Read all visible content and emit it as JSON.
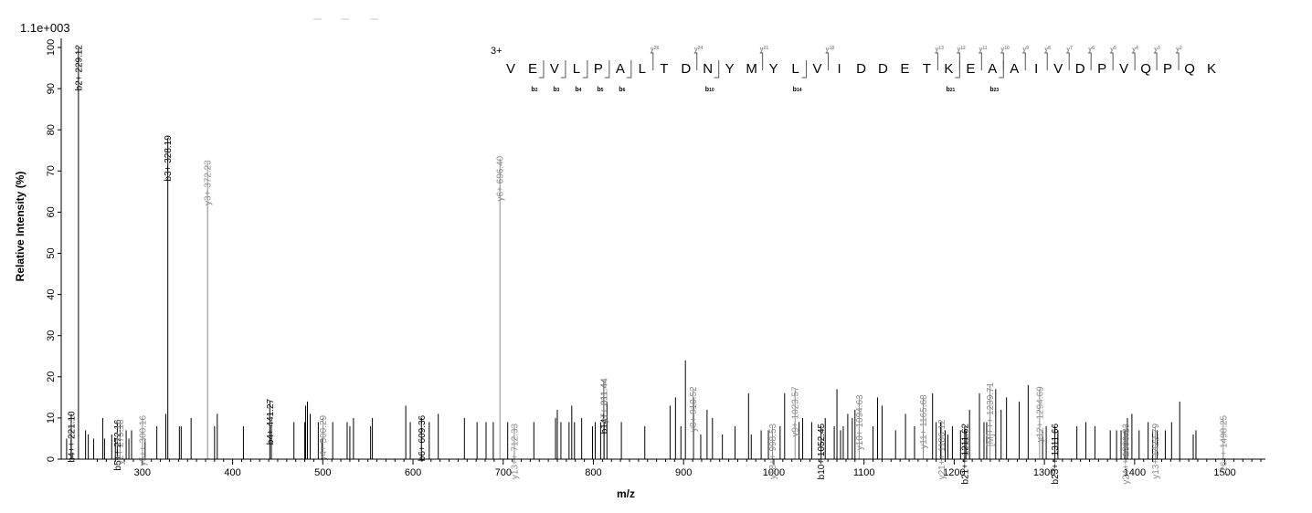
{
  "chart_data": {
    "type": "bar",
    "scale_label": "1.1e+003",
    "xlabel": "m/z",
    "ylabel": "Relative   Intensity (%)",
    "xlim": [
      210,
      1545
    ],
    "ylim": [
      0,
      100
    ],
    "x_ticks": [
      300,
      400,
      500,
      600,
      700,
      800,
      900,
      1000,
      1100,
      1200,
      1300,
      1400,
      1500
    ],
    "y_ticks": [
      0,
      10,
      20,
      30,
      40,
      50,
      60,
      70,
      80,
      90,
      100
    ],
    "charge_label": "3+",
    "sequence": [
      "V",
      "E",
      "V",
      "L",
      "P",
      "A",
      "L",
      "T",
      "D",
      "N",
      "Y",
      "M",
      "Y",
      "L",
      "V",
      "I",
      "D",
      "D",
      "E",
      "T",
      "K",
      "E",
      "A",
      "A",
      "I",
      "V",
      "D",
      "P",
      "V",
      "Q",
      "P",
      "Q",
      "K"
    ],
    "y_ion_markers": [
      {
        "after": 7,
        "label": "26"
      },
      {
        "after": 9,
        "label": "24"
      },
      {
        "after": 12,
        "label": "21"
      },
      {
        "after": 15,
        "label": "18"
      },
      {
        "after": 20,
        "label": "13"
      },
      {
        "after": 21,
        "label": "12"
      },
      {
        "after": 22,
        "label": "11"
      },
      {
        "after": 23,
        "label": "10"
      },
      {
        "after": 24,
        "label": "9"
      },
      {
        "after": 25,
        "label": "8"
      },
      {
        "after": 26,
        "label": "7"
      },
      {
        "after": 27,
        "label": "6"
      },
      {
        "after": 28,
        "label": "5"
      },
      {
        "after": 29,
        "label": "4"
      },
      {
        "after": 30,
        "label": "3"
      },
      {
        "after": 31,
        "label": "2"
      }
    ],
    "b_ion_markers": [
      {
        "after": 2,
        "label": "2"
      },
      {
        "after": 3,
        "label": "3"
      },
      {
        "after": 4,
        "label": "4"
      },
      {
        "after": 5,
        "label": "5"
      },
      {
        "after": 6,
        "label": "6"
      },
      {
        "after": 10,
        "label": "10"
      },
      {
        "after": 14,
        "label": "14"
      },
      {
        "after": 21,
        "label": "21"
      },
      {
        "after": 23,
        "label": "23"
      }
    ],
    "labeled_peaks": [
      {
        "mz": 221.1,
        "intensity": 11,
        "label": "b4++ 221.10",
        "ion": "b"
      },
      {
        "mz": 229.12,
        "intensity": 100,
        "label": "b2+ 229.12",
        "ion": "b"
      },
      {
        "mz": 272.16,
        "intensity": 9,
        "label": "b5++ 272.16",
        "ion": "b"
      },
      {
        "mz": 275.18,
        "intensity": 9,
        "label": "y2+ 275.18",
        "ion": "y"
      },
      {
        "mz": 300.16,
        "intensity": 10,
        "label": "y5++ 300.16",
        "ion": "y"
      },
      {
        "mz": 328.19,
        "intensity": 78,
        "label": "b3+ 328.19",
        "ion": "b"
      },
      {
        "mz": 372.23,
        "intensity": 72,
        "label": "y3+ 372.23",
        "ion": "y"
      },
      {
        "mz": 441.27,
        "intensity": 14,
        "label": "b4+ 441.27",
        "ion": "b"
      },
      {
        "mz": 500.29,
        "intensity": 10,
        "label": "y4+ 500.29",
        "ion": "y"
      },
      {
        "mz": 609.36,
        "intensity": 10,
        "label": "b6+ 609.36",
        "ion": "b"
      },
      {
        "mz": 696.4,
        "intensity": 73,
        "label": "y6+ 696.40",
        "ion": "y"
      },
      {
        "mz": 712.33,
        "intensity": 8,
        "label": "y13++ 712.33",
        "ion": "y"
      },
      {
        "mz": 811.44,
        "intensity": 19,
        "label": "b14++ 811.44",
        "ion": "b"
      },
      {
        "mz": 811.44,
        "intensity": 19,
        "label": "y7+ 811.44",
        "ion": "y"
      },
      {
        "mz": 910.52,
        "intensity": 17,
        "label": "y8+ 910.52",
        "ion": "y"
      },
      {
        "mz": 998.53,
        "intensity": 8,
        "label": "y18++ 998.53",
        "ion": "y"
      },
      {
        "mz": 1023.57,
        "intensity": 17,
        "label": "y9+ 1023.57",
        "ion": "y"
      },
      {
        "mz": 1052.45,
        "intensity": 8,
        "label": "b10+ 1052.45",
        "ion": "b"
      },
      {
        "mz": 1094.63,
        "intensity": 15,
        "label": "y10+ 1094.63",
        "ion": "y"
      },
      {
        "mz": 1165.68,
        "intensity": 15,
        "label": "y11+ 1165.68",
        "ion": "y"
      },
      {
        "mz": 1186.12,
        "intensity": 9,
        "label": "y21++ 1186.12",
        "ion": "y"
      },
      {
        "mz": 1211.62,
        "intensity": 8,
        "label": "b21++ 1211.62",
        "ion": "b"
      },
      {
        "mz": 1239.71,
        "intensity": 18,
        "label": "[M]+++ 1239.71",
        "ion": "y"
      },
      {
        "mz": 1294.69,
        "intensity": 17,
        "label": "y12+ 1294.69",
        "ion": "y"
      },
      {
        "mz": 1311.66,
        "intensity": 8,
        "label": "b23++ 1311.66",
        "ion": "b"
      },
      {
        "mz": 1390.23,
        "intensity": 8,
        "label": "y24++ 1390.23",
        "ion": "y"
      },
      {
        "mz": 1422.79,
        "intensity": 8,
        "label": "y13+ 1422.79",
        "ion": "y"
      },
      {
        "mz": 1498.25,
        "intensity": 10,
        "label": "y26++ 1498.25",
        "ion": "y"
      }
    ],
    "other_peaks": [
      [
        216,
        5
      ],
      [
        221,
        5
      ],
      [
        237,
        7
      ],
      [
        240,
        6
      ],
      [
        246,
        5
      ],
      [
        256,
        10
      ],
      [
        258,
        5
      ],
      [
        266,
        6
      ],
      [
        270,
        5
      ],
      [
        282,
        7
      ],
      [
        285,
        5
      ],
      [
        288,
        7
      ],
      [
        303,
        5
      ],
      [
        316,
        8
      ],
      [
        326,
        11
      ],
      [
        341,
        8
      ],
      [
        343,
        8
      ],
      [
        354,
        10
      ],
      [
        380,
        8
      ],
      [
        383,
        11
      ],
      [
        412,
        8
      ],
      [
        443,
        8
      ],
      [
        468,
        9
      ],
      [
        480,
        9
      ],
      [
        481,
        13
      ],
      [
        483,
        14
      ],
      [
        486,
        11
      ],
      [
        495,
        9
      ],
      [
        499,
        5
      ],
      [
        511,
        9
      ],
      [
        527,
        9
      ],
      [
        530,
        8
      ],
      [
        534,
        10
      ],
      [
        553,
        8
      ],
      [
        555,
        10
      ],
      [
        592,
        13
      ],
      [
        597,
        9
      ],
      [
        618,
        9
      ],
      [
        628,
        11
      ],
      [
        657,
        10
      ],
      [
        671,
        9
      ],
      [
        681,
        9
      ],
      [
        689,
        9
      ],
      [
        705,
        9
      ],
      [
        734,
        9
      ],
      [
        758,
        10
      ],
      [
        760,
        12
      ],
      [
        764,
        9
      ],
      [
        773,
        9
      ],
      [
        776,
        13
      ],
      [
        779,
        9
      ],
      [
        787,
        10
      ],
      [
        799,
        8
      ],
      [
        802,
        9
      ],
      [
        808,
        9
      ],
      [
        812,
        9
      ],
      [
        815,
        14
      ],
      [
        831,
        9
      ],
      [
        857,
        8
      ],
      [
        885,
        13
      ],
      [
        891,
        15
      ],
      [
        897,
        8
      ],
      [
        902,
        24
      ],
      [
        911,
        15
      ],
      [
        919,
        6
      ],
      [
        926,
        12
      ],
      [
        932,
        10
      ],
      [
        943,
        6
      ],
      [
        957,
        8
      ],
      [
        972,
        16
      ],
      [
        975,
        6
      ],
      [
        986,
        7
      ],
      [
        994,
        7
      ],
      [
        1007,
        8
      ],
      [
        1012,
        16
      ],
      [
        1028,
        9
      ],
      [
        1032,
        10
      ],
      [
        1042,
        9
      ],
      [
        1057,
        10
      ],
      [
        1067,
        8
      ],
      [
        1070,
        17
      ],
      [
        1074,
        7
      ],
      [
        1077,
        8
      ],
      [
        1082,
        11
      ],
      [
        1087,
        10
      ],
      [
        1090,
        12
      ],
      [
        1110,
        8
      ],
      [
        1115,
        15
      ],
      [
        1120,
        13
      ],
      [
        1135,
        7
      ],
      [
        1146,
        11
      ],
      [
        1156,
        8
      ],
      [
        1176,
        16
      ],
      [
        1180,
        9
      ],
      [
        1185,
        9
      ],
      [
        1190,
        7
      ],
      [
        1193,
        6
      ],
      [
        1198,
        8
      ],
      [
        1207,
        7
      ],
      [
        1213,
        7
      ],
      [
        1217,
        12
      ],
      [
        1228,
        16
      ],
      [
        1233,
        9
      ],
      [
        1236,
        9
      ],
      [
        1246,
        17
      ],
      [
        1252,
        12
      ],
      [
        1258,
        15
      ],
      [
        1272,
        14
      ],
      [
        1282,
        18
      ],
      [
        1298,
        7
      ],
      [
        1302,
        8
      ],
      [
        1315,
        7
      ],
      [
        1336,
        8
      ],
      [
        1346,
        9
      ],
      [
        1356,
        8
      ],
      [
        1373,
        7
      ],
      [
        1380,
        7
      ],
      [
        1385,
        7
      ],
      [
        1389,
        7
      ],
      [
        1392,
        10
      ],
      [
        1397,
        11
      ],
      [
        1405,
        7
      ],
      [
        1415,
        9
      ],
      [
        1420,
        7
      ],
      [
        1425,
        7
      ],
      [
        1434,
        7
      ],
      [
        1441,
        9
      ],
      [
        1450,
        14
      ],
      [
        1465,
        6
      ],
      [
        1468,
        7
      ]
    ]
  }
}
